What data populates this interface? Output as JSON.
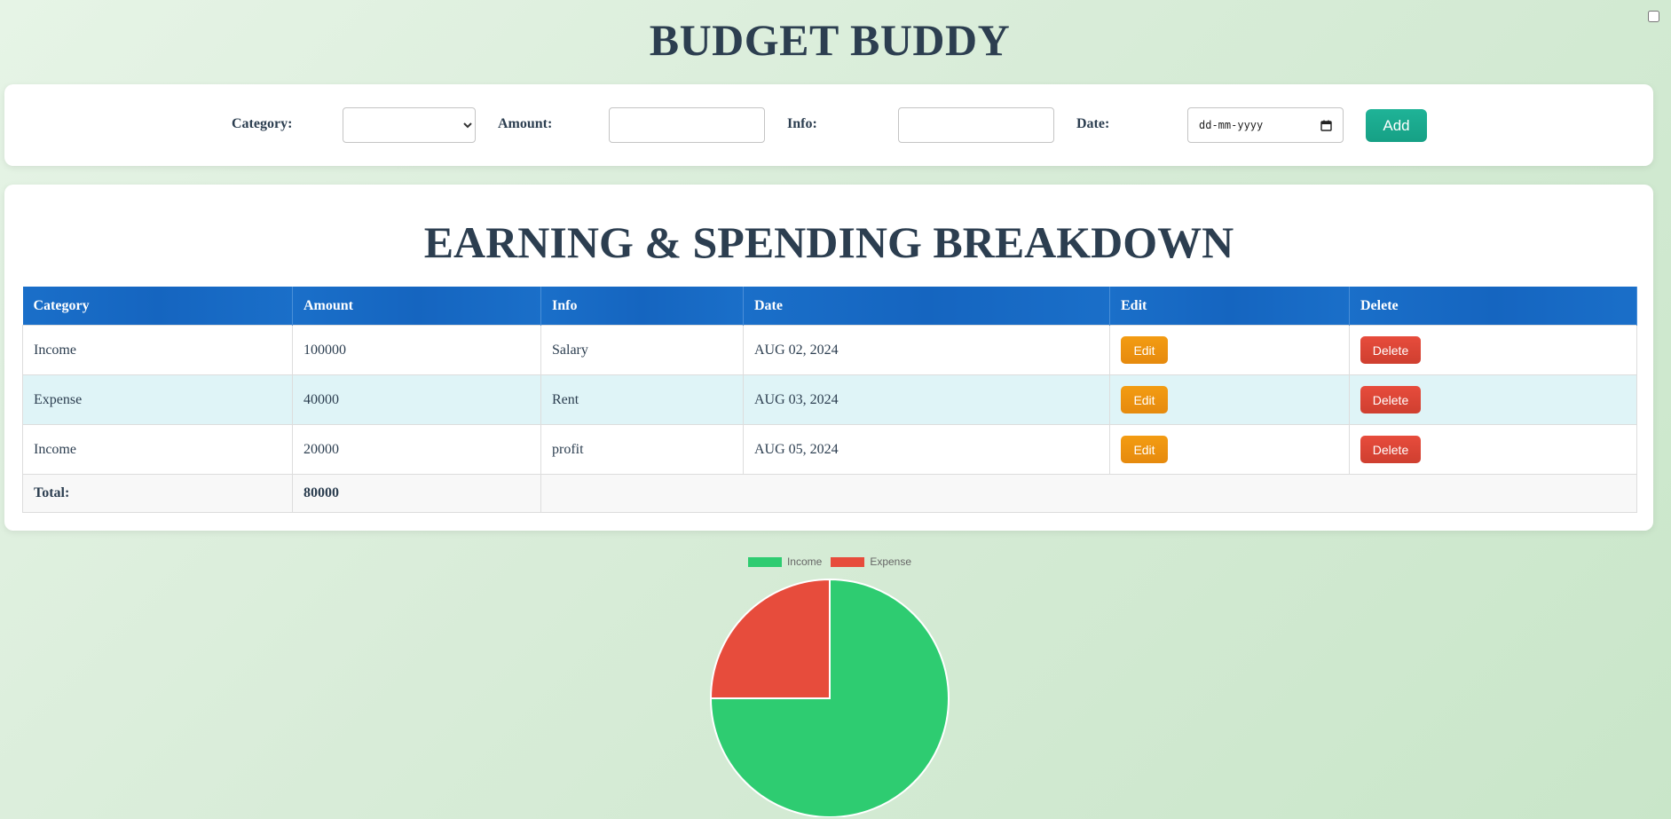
{
  "app": {
    "title": "BUDGET BUDDY"
  },
  "form": {
    "category_label": "Category:",
    "category_value": "",
    "amount_label": "Amount:",
    "amount_value": "",
    "info_label": "Info:",
    "info_value": "",
    "date_label": "Date:",
    "date_placeholder": "dd-mm-yyyy",
    "add_label": "Add"
  },
  "breakdown": {
    "title": "EARNING & SPENDING BREAKDOWN",
    "columns": [
      "Category",
      "Amount",
      "Info",
      "Date",
      "Edit",
      "Delete"
    ],
    "rows": [
      {
        "category": "Income",
        "amount": "100000",
        "info": "Salary",
        "date": "AUG 02, 2024",
        "edit": "Edit",
        "delete": "Delete"
      },
      {
        "category": "Expense",
        "amount": "40000",
        "info": "Rent",
        "date": "AUG 03, 2024",
        "edit": "Edit",
        "delete": "Delete"
      },
      {
        "category": "Income",
        "amount": "20000",
        "info": "profit",
        "date": "AUG 05, 2024",
        "edit": "Edit",
        "delete": "Delete"
      }
    ],
    "total_label": "Total:",
    "total_value": "80000"
  },
  "chart_data": {
    "type": "pie",
    "categories": [
      "Income",
      "Expense"
    ],
    "values": [
      120000,
      40000
    ],
    "colors": [
      "#2ecc71",
      "#e74c3c"
    ],
    "legend": "top"
  },
  "colors": {
    "accent": "#16a085",
    "header": "#1565c0",
    "edit": "#f39c12",
    "delete": "#e74c3c"
  }
}
